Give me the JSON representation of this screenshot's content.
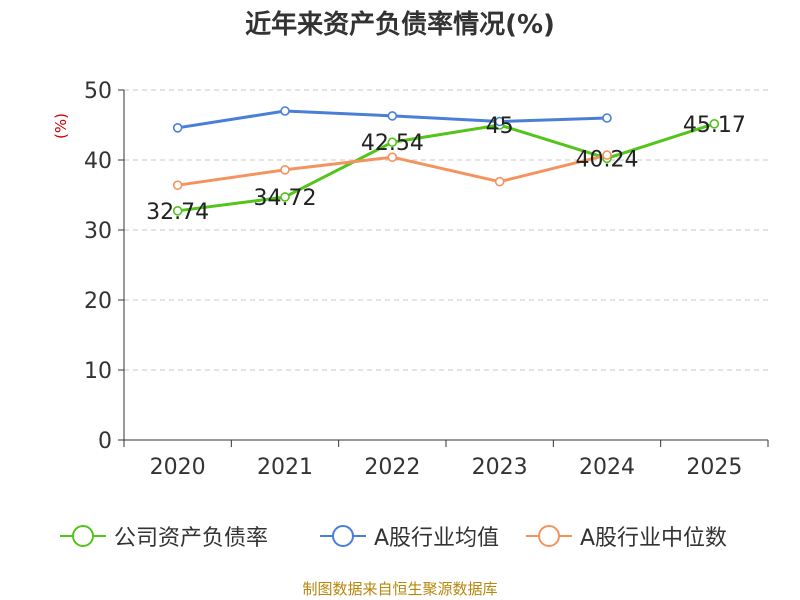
{
  "chart_data": {
    "type": "line",
    "title": "近年来资产负债率情况(%)",
    "ylabel": "(%)",
    "xlabel": "",
    "categories": [
      "2020",
      "2021",
      "2022",
      "2023",
      "2024",
      "2025"
    ],
    "ylim": [
      0,
      50
    ],
    "yticks": [
      0,
      10,
      20,
      30,
      40,
      50
    ],
    "grid": true,
    "legend_position": "bottom",
    "series": [
      {
        "name": "公司资产负债率",
        "color": "#52c41a",
        "show_labels": true,
        "values": [
          32.74,
          34.72,
          42.54,
          45,
          40.24,
          45.17
        ],
        "labels": [
          "32.74",
          "34.72",
          "42.54",
          "45",
          "40.24",
          "45.17"
        ]
      },
      {
        "name": "A股行业均值",
        "color": "#4a7fd8",
        "show_labels": false,
        "values": [
          44.6,
          47,
          46.3,
          45.5,
          46,
          null
        ]
      },
      {
        "name": "A股行业中位数",
        "color": "#f5935e",
        "show_labels": false,
        "values": [
          36.4,
          38.6,
          40.4,
          36.9,
          40.7,
          null
        ]
      }
    ]
  },
  "source_note": "制图数据来自恒生聚源数据库"
}
